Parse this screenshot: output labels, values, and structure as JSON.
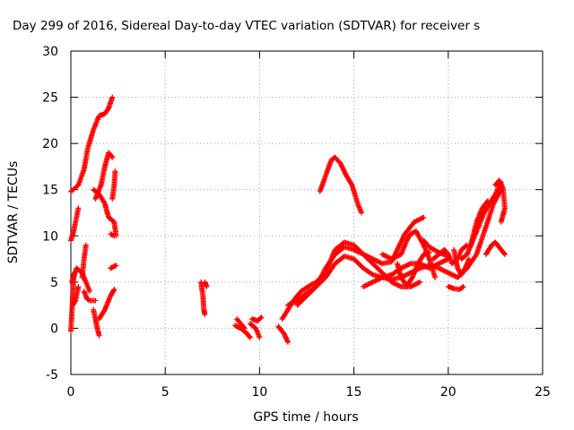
{
  "chart_data": {
    "type": "scatter",
    "title": "Day 299 of 2016, Sidereal Day-to-day VTEC variation (SDTVAR) for receiver s",
    "xlabel": "GPS time / hours",
    "ylabel": "SDTVAR / TECUs",
    "xlim": [
      0,
      25
    ],
    "ylim": [
      -5,
      30
    ],
    "xticks": [
      0,
      5,
      10,
      15,
      20,
      25
    ],
    "yticks": [
      -5,
      0,
      5,
      10,
      15,
      20,
      25,
      30
    ],
    "grid": true,
    "marker": "+",
    "color": "#ff0000",
    "tracks": [
      [
        [
          0.0,
          14.8
        ],
        [
          0.4,
          15.5
        ],
        [
          0.7,
          17.2
        ],
        [
          0.9,
          19.5
        ],
        [
          1.2,
          21.5
        ],
        [
          1.5,
          23.0
        ],
        [
          1.8,
          23.2
        ],
        [
          2.0,
          23.8
        ],
        [
          2.2,
          25.0
        ]
      ],
      [
        [
          0.0,
          9.5
        ],
        [
          0.15,
          10.5
        ],
        [
          0.3,
          12.0
        ],
        [
          0.4,
          13.0
        ]
      ],
      [
        [
          0.0,
          -0.3
        ],
        [
          0.05,
          1.5
        ],
        [
          0.1,
          3.5
        ],
        [
          0.15,
          5.5
        ],
        [
          0.2,
          6.0
        ]
      ],
      [
        [
          0.05,
          5.0
        ],
        [
          0.3,
          6.5
        ],
        [
          0.6,
          6.0
        ],
        [
          0.8,
          5.0
        ],
        [
          1.0,
          4.0
        ]
      ],
      [
        [
          0.1,
          2.5
        ],
        [
          0.25,
          3.0
        ],
        [
          0.4,
          4.5
        ]
      ],
      [
        [
          0.6,
          5.5
        ],
        [
          0.7,
          7.5
        ],
        [
          0.8,
          9.0
        ]
      ],
      [
        [
          0.7,
          4.0
        ],
        [
          0.85,
          3.2
        ],
        [
          1.0,
          3.0
        ],
        [
          1.3,
          3.0
        ]
      ],
      [
        [
          1.2,
          2.0
        ],
        [
          1.4,
          0.0
        ],
        [
          1.5,
          -0.8
        ]
      ],
      [
        [
          1.3,
          14.0
        ],
        [
          1.6,
          15.5
        ],
        [
          1.8,
          17.5
        ],
        [
          2.0,
          19.0
        ],
        [
          2.2,
          18.5
        ]
      ],
      [
        [
          1.2,
          15.0
        ],
        [
          1.5,
          14.5
        ],
        [
          1.8,
          13.5
        ],
        [
          2.0,
          12.0
        ],
        [
          2.3,
          11.5
        ],
        [
          2.4,
          10.0
        ]
      ],
      [
        [
          1.5,
          1.0
        ],
        [
          1.8,
          2.0
        ],
        [
          2.1,
          3.5
        ],
        [
          2.3,
          4.2
        ]
      ],
      [
        [
          2.1,
          10.2
        ],
        [
          2.3,
          10.0
        ]
      ],
      [
        [
          2.1,
          6.5
        ],
        [
          2.4,
          6.8
        ]
      ],
      [
        [
          2.2,
          14.0
        ],
        [
          2.3,
          15.5
        ],
        [
          2.35,
          17.0
        ]
      ],
      [
        [
          6.9,
          5.0
        ],
        [
          7.0,
          3.5
        ],
        [
          7.05,
          2.0
        ],
        [
          7.1,
          1.5
        ]
      ],
      [
        [
          7.1,
          5.0
        ],
        [
          7.2,
          4.5
        ]
      ],
      [
        [
          8.7,
          0.3
        ],
        [
          9.0,
          0.0
        ],
        [
          9.3,
          -0.5
        ],
        [
          9.5,
          -1.0
        ]
      ],
      [
        [
          8.8,
          1.0
        ],
        [
          9.0,
          0.5
        ],
        [
          9.2,
          0.0
        ]
      ],
      [
        [
          9.5,
          0.5
        ],
        [
          9.8,
          0.0
        ],
        [
          10.0,
          -1.0
        ]
      ],
      [
        [
          9.6,
          1.0
        ],
        [
          9.9,
          0.8
        ],
        [
          10.1,
          1.2
        ]
      ],
      [
        [
          11.0,
          0.2
        ],
        [
          11.3,
          -0.6
        ],
        [
          11.5,
          -1.5
        ]
      ],
      [
        [
          11.2,
          1.0
        ],
        [
          11.5,
          2.0
        ],
        [
          11.8,
          3.0
        ],
        [
          12.2,
          4.0
        ],
        [
          12.8,
          4.8
        ],
        [
          13.2,
          5.0
        ]
      ],
      [
        [
          11.5,
          2.5
        ],
        [
          12.0,
          3.0
        ],
        [
          12.5,
          3.8
        ],
        [
          13.0,
          4.5
        ],
        [
          13.5,
          5.5
        ],
        [
          14.0,
          7.0
        ],
        [
          14.5,
          7.8
        ],
        [
          15.0,
          7.5
        ],
        [
          15.5,
          6.5
        ],
        [
          16.0,
          5.8
        ],
        [
          16.5,
          5.5
        ],
        [
          17.0,
          5.3
        ],
        [
          17.5,
          5.5
        ],
        [
          18.0,
          6.0
        ],
        [
          18.5,
          6.5
        ],
        [
          19.0,
          6.8
        ],
        [
          19.5,
          6.5
        ],
        [
          20.0,
          6.0
        ],
        [
          20.5,
          5.5
        ],
        [
          21.0,
          6.5
        ],
        [
          21.5,
          8.0
        ],
        [
          22.0,
          11.0
        ],
        [
          22.4,
          13.5
        ],
        [
          22.8,
          15.0
        ]
      ],
      [
        [
          12.0,
          2.5
        ],
        [
          12.5,
          3.5
        ],
        [
          13.0,
          4.5
        ],
        [
          13.5,
          6.5
        ],
        [
          14.0,
          8.0
        ],
        [
          14.5,
          8.8
        ],
        [
          15.0,
          8.5
        ],
        [
          15.5,
          8.0
        ],
        [
          16.0,
          7.0
        ],
        [
          16.5,
          6.0
        ],
        [
          17.0,
          5.0
        ],
        [
          17.5,
          4.5
        ],
        [
          18.0,
          4.5
        ],
        [
          18.5,
          5.0
        ]
      ],
      [
        [
          13.2,
          14.8
        ],
        [
          13.5,
          16.5
        ],
        [
          13.8,
          18.2
        ],
        [
          14.0,
          18.5
        ],
        [
          14.3,
          17.8
        ],
        [
          14.6,
          16.5
        ],
        [
          14.9,
          15.5
        ],
        [
          15.2,
          13.5
        ],
        [
          15.4,
          12.5
        ]
      ],
      [
        [
          13.0,
          5.0
        ],
        [
          13.5,
          6.0
        ],
        [
          14.0,
          8.5
        ],
        [
          14.5,
          9.3
        ],
        [
          15.0,
          9.0
        ],
        [
          15.5,
          8.0
        ],
        [
          16.0,
          7.5
        ],
        [
          16.5,
          7.0
        ],
        [
          17.0,
          7.2
        ],
        [
          17.3,
          8.5
        ],
        [
          17.7,
          10.2
        ],
        [
          18.2,
          11.5
        ],
        [
          18.7,
          12.0
        ]
      ],
      [
        [
          15.5,
          4.5
        ],
        [
          16.0,
          5.0
        ],
        [
          16.5,
          5.5
        ],
        [
          17.0,
          5.8
        ],
        [
          17.5,
          6.5
        ],
        [
          18.0,
          7.0
        ],
        [
          18.5,
          7.0
        ],
        [
          19.0,
          6.5
        ],
        [
          19.5,
          7.0
        ],
        [
          20.0,
          7.5
        ]
      ],
      [
        [
          16.5,
          8.0
        ],
        [
          17.0,
          7.5
        ],
        [
          17.5,
          8.0
        ],
        [
          17.8,
          9.5
        ],
        [
          18.0,
          10.2
        ],
        [
          18.3,
          10.5
        ],
        [
          18.7,
          9.0
        ],
        [
          19.0,
          7.5
        ],
        [
          19.3,
          5.5
        ]
      ],
      [
        [
          17.3,
          7.0
        ],
        [
          17.5,
          5.5
        ],
        [
          17.8,
          4.6
        ],
        [
          18.1,
          5.5
        ],
        [
          18.4,
          7.0
        ],
        [
          18.7,
          8.0
        ],
        [
          19.0,
          8.2
        ]
      ],
      [
        [
          18.7,
          9.5
        ],
        [
          19.0,
          8.8
        ],
        [
          19.5,
          8.2
        ],
        [
          20.0,
          7.8
        ]
      ],
      [
        [
          19.2,
          7.5
        ],
        [
          19.5,
          8.0
        ],
        [
          19.8,
          8.5
        ],
        [
          20.0,
          8.0
        ],
        [
          20.2,
          7.0
        ],
        [
          20.5,
          7.5
        ],
        [
          20.7,
          8.5
        ],
        [
          21.0,
          9.0
        ]
      ],
      [
        [
          20.0,
          4.5
        ],
        [
          20.3,
          4.3
        ],
        [
          20.6,
          4.2
        ],
        [
          20.8,
          4.5
        ]
      ],
      [
        [
          20.3,
          8.5
        ],
        [
          20.5,
          6.5
        ],
        [
          20.7,
          5.8
        ],
        [
          20.9,
          6.5
        ],
        [
          21.1,
          7.5
        ]
      ],
      [
        [
          20.7,
          7.5
        ],
        [
          21.0,
          8.0
        ],
        [
          21.3,
          9.5
        ],
        [
          21.6,
          11.0
        ],
        [
          21.9,
          12.5
        ],
        [
          22.2,
          13.5
        ],
        [
          22.5,
          14.5
        ],
        [
          22.8,
          15.8
        ]
      ],
      [
        [
          21.2,
          9.0
        ],
        [
          21.5,
          11.5
        ],
        [
          21.8,
          13.0
        ],
        [
          22.1,
          13.8
        ]
      ],
      [
        [
          22.0,
          8.0
        ],
        [
          22.3,
          9.0
        ],
        [
          22.5,
          9.3
        ],
        [
          22.8,
          8.5
        ],
        [
          23.0,
          8.0
        ]
      ],
      [
        [
          22.5,
          15.5
        ],
        [
          22.7,
          16.0
        ],
        [
          22.9,
          15.2
        ],
        [
          23.0,
          13.0
        ],
        [
          22.8,
          11.5
        ]
      ]
    ]
  }
}
